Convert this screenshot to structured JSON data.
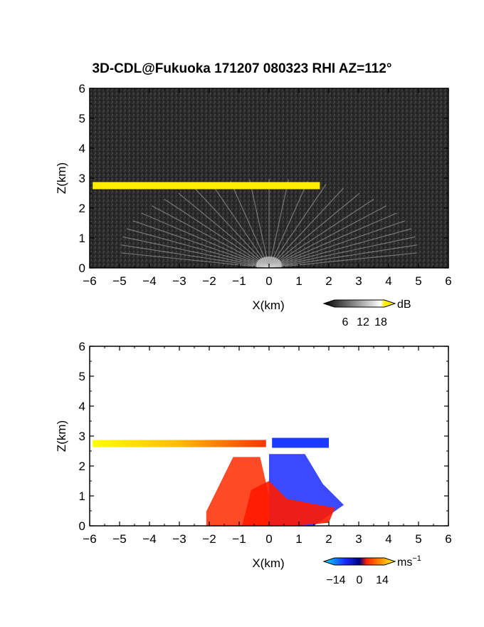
{
  "title": "3D-CDL@Fukuoka 171207 080323 RHI AZ=112°",
  "chart_data": [
    {
      "type": "heatmap",
      "panel": "top",
      "xlabel": "X(km)",
      "ylabel": "Z(km)",
      "xlim": [
        -6,
        6
      ],
      "ylim": [
        0,
        6
      ],
      "xticks": [
        "-6",
        "-5",
        "-4",
        "-3",
        "-2",
        "-1",
        "0",
        "1",
        "2",
        "3",
        "4",
        "5",
        "6"
      ],
      "yticks": [
        "0",
        "1",
        "2",
        "3",
        "4",
        "5",
        "6"
      ],
      "colorbar": {
        "unit": "dB",
        "ticks": [
          "6",
          "12",
          "18"
        ]
      },
      "features": [
        {
          "kind": "layer",
          "x_start": -5.9,
          "x_end": 1.7,
          "z": 2.75,
          "value_db": 18,
          "color": "#ffee00"
        }
      ],
      "colors": {
        "background": "#2b2b2b",
        "strong": "#ffee00",
        "rays": "#d8d8d8"
      }
    },
    {
      "type": "heatmap",
      "panel": "bottom",
      "xlabel": "X(km)",
      "ylabel": "Z(km)",
      "xlim": [
        -6,
        6
      ],
      "ylim": [
        0,
        6
      ],
      "xticks": [
        "-6",
        "-5",
        "-4",
        "-3",
        "-2",
        "-1",
        "0",
        "1",
        "2",
        "3",
        "4",
        "5",
        "6"
      ],
      "yticks": [
        "0",
        "1",
        "2",
        "3",
        "4",
        "5",
        "6"
      ],
      "colorbar": {
        "unit": "ms",
        "unit_exponent": "−1",
        "ticks": [
          "−14",
          "0",
          "14"
        ]
      },
      "features": [
        {
          "kind": "layer",
          "x_start": -5.9,
          "x_end": -0.1,
          "z": 2.75,
          "velocity_start": 14,
          "velocity_end": 4
        },
        {
          "kind": "layer",
          "x_start": 0.1,
          "x_end": 2.0,
          "z": 2.75,
          "velocity": -12
        },
        {
          "kind": "cone",
          "x_start": -2.1,
          "x_end": 0.0,
          "z_top": 2.3,
          "velocity": 6
        },
        {
          "kind": "cone",
          "x_start": 0.0,
          "x_end": 2.5,
          "z_top": 2.4,
          "velocity": -12
        }
      ],
      "colors": {
        "background": "#ffffff",
        "positive": "#ff2200",
        "negative": "#1a2aff",
        "weak_negative": "#22aaff"
      }
    }
  ]
}
